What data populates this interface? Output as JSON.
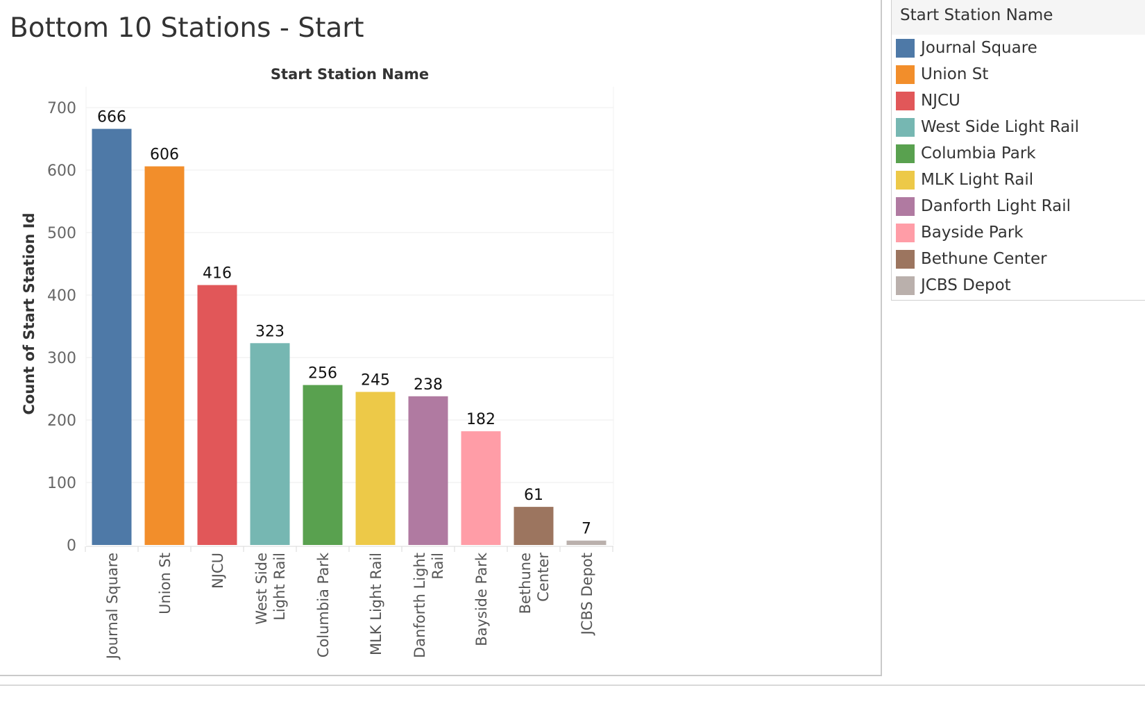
{
  "sheet": {
    "title": "Bottom 10 Stations - Start"
  },
  "chart_data": {
    "type": "bar",
    "title": "Start Station Name",
    "xlabel": "",
    "ylabel": "Count of Start Station Id",
    "ylim": [
      0,
      700
    ],
    "yticks": [
      0,
      100,
      200,
      300,
      400,
      500,
      600,
      700
    ],
    "grid": true,
    "legend_position": "right",
    "categories": [
      "Journal Square",
      "Union St",
      "NJCU",
      "West Side Light Rail",
      "Columbia Park",
      "MLK Light Rail",
      "Danforth Light Rail",
      "Bayside Park",
      "Bethune Center",
      "JCBS Depot"
    ],
    "category_labels": [
      [
        "Journal Square"
      ],
      [
        "Union St"
      ],
      [
        "NJCU"
      ],
      [
        "West Side",
        "Light Rail"
      ],
      [
        "Columbia Park"
      ],
      [
        "MLK Light Rail"
      ],
      [
        "Danforth Light",
        "Rail"
      ],
      [
        "Bayside Park"
      ],
      [
        "Bethune",
        "Center"
      ],
      [
        "JCBS Depot"
      ]
    ],
    "values": [
      666,
      606,
      416,
      323,
      256,
      245,
      238,
      182,
      61,
      7
    ],
    "colors": [
      "#4e79a7",
      "#f28e2b",
      "#e15759",
      "#76b7b2",
      "#59a14f",
      "#edc948",
      "#b07aa1",
      "#ff9da7",
      "#9c755f",
      "#bab0ac"
    ]
  },
  "legend": {
    "title": "Start Station Name",
    "items": [
      {
        "label": "Journal Square",
        "color": "#4e79a7"
      },
      {
        "label": "Union St",
        "color": "#f28e2b"
      },
      {
        "label": "NJCU",
        "color": "#e15759"
      },
      {
        "label": "West Side Light Rail",
        "color": "#76b7b2"
      },
      {
        "label": "Columbia Park",
        "color": "#59a14f"
      },
      {
        "label": "MLK Light Rail",
        "color": "#edc948"
      },
      {
        "label": "Danforth Light Rail",
        "color": "#b07aa1"
      },
      {
        "label": "Bayside Park",
        "color": "#ff9da7"
      },
      {
        "label": "Bethune Center",
        "color": "#9c755f"
      },
      {
        "label": "JCBS Depot",
        "color": "#bab0ac"
      }
    ]
  }
}
